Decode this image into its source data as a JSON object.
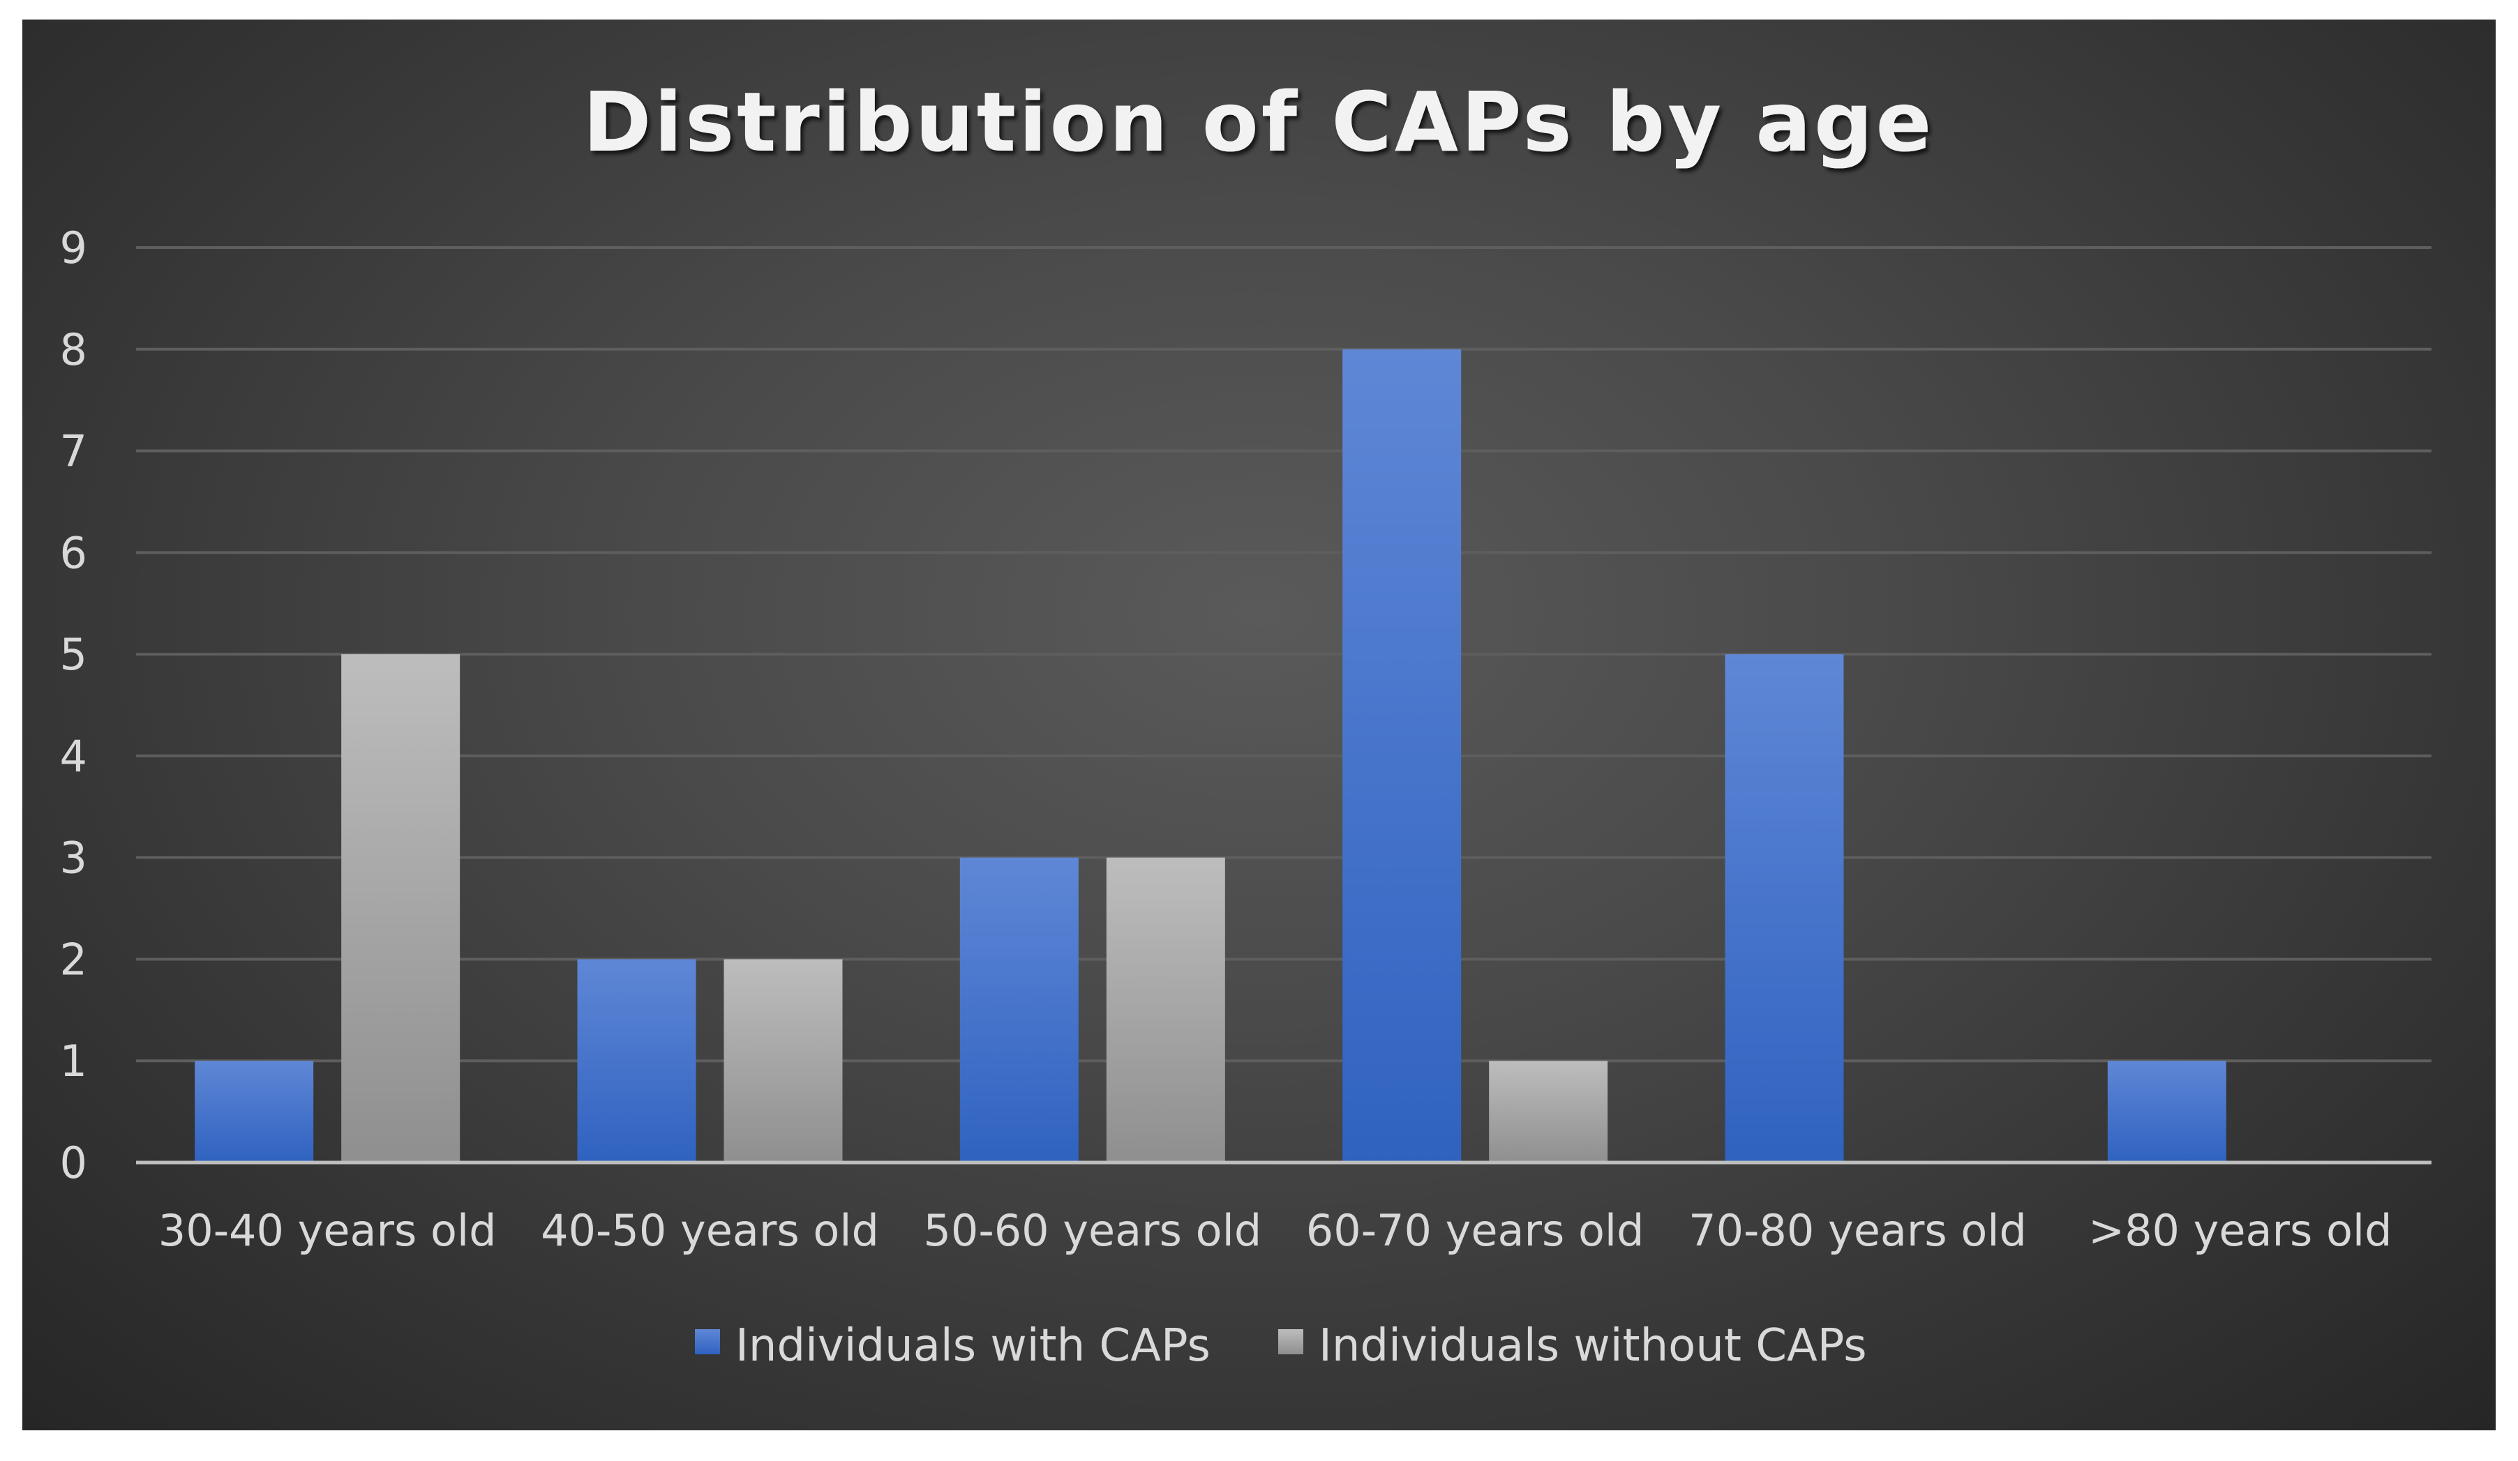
{
  "chart_data": {
    "type": "bar",
    "title": "Distribution of CAPs by age",
    "xlabel": "",
    "ylabel": "",
    "categories": [
      "30-40 years old",
      "40-50 years old",
      "50-60 years old",
      "60-70 years old",
      "70-80 years old",
      ">80 years old"
    ],
    "series": [
      {
        "name": "Individuals with CAPs",
        "values": [
          1,
          2,
          3,
          8,
          5,
          1
        ],
        "color": "#4472c4"
      },
      {
        "name": "Individuals without CAPs",
        "values": [
          5,
          2,
          3,
          1,
          0,
          0
        ],
        "color": "#a5a5a5"
      }
    ],
    "ylim": [
      0,
      9
    ],
    "yticks": [
      "0",
      "1",
      "2",
      "3",
      "4",
      "5",
      "6",
      "7",
      "8",
      "9"
    ],
    "grid": true,
    "legend_position": "bottom"
  },
  "colors": {
    "background_center": "#5a5a5a",
    "background_edge": "#262626",
    "gridline": "#5e5e5e",
    "axis_line": "#bfbfbf",
    "text": "#d9d9d9"
  }
}
